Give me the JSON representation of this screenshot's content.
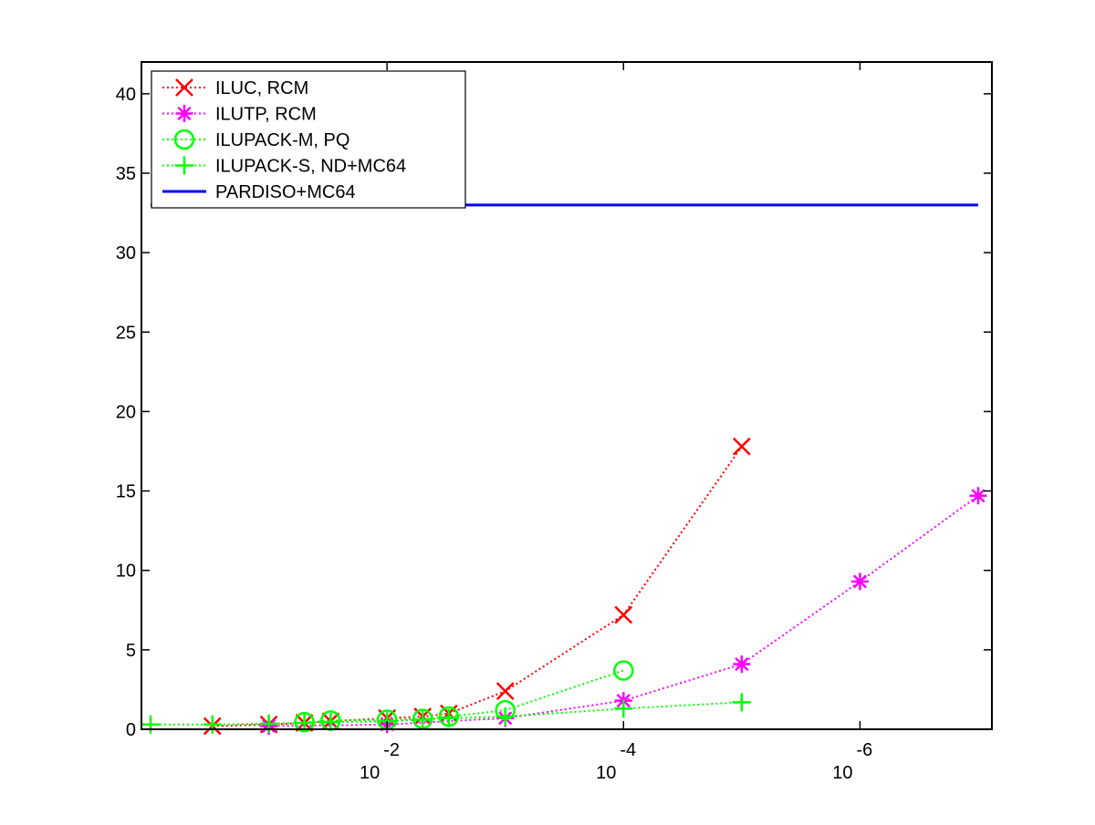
{
  "chart_data": {
    "type": "line",
    "title": "",
    "xlabel": "",
    "ylabel": "",
    "x_scale": "log",
    "x_reversed": true,
    "xlim": [
      1,
      1e-07
    ],
    "ylim": [
      0,
      42
    ],
    "y_ticks": [
      0,
      5,
      10,
      15,
      20,
      25,
      30,
      35,
      40
    ],
    "x_ticks": [
      {
        "value": 0.01,
        "base": "10",
        "exp": "-2"
      },
      {
        "value": 0.0001,
        "base": "10",
        "exp": "-4"
      },
      {
        "value": 1e-06,
        "base": "10",
        "exp": "-6"
      }
    ],
    "grid": false,
    "legend_position": "top-left",
    "series": [
      {
        "name": "ILUC, RCM",
        "color": "#ff0000",
        "line_style": "dotted",
        "marker": "x",
        "x": [
          0.3,
          0.1,
          0.05,
          0.03,
          0.01,
          0.005,
          0.003,
          0.001,
          0.0001,
          1e-05
        ],
        "y": [
          0.2,
          0.3,
          0.4,
          0.5,
          0.7,
          0.8,
          1.0,
          2.4,
          7.2,
          17.8
        ]
      },
      {
        "name": "ILUTP, RCM",
        "color": "#ff00ff",
        "line_style": "dotted",
        "marker": "asterisk",
        "x": [
          0.1,
          0.01,
          0.001,
          0.0001,
          1e-05,
          1e-06,
          1e-07
        ],
        "y": [
          0.2,
          0.3,
          0.7,
          1.8,
          4.1,
          9.3,
          14.7
        ]
      },
      {
        "name": "ILUPACK-M, PQ",
        "color": "#00ff00",
        "line_style": "dotted",
        "marker": "circle",
        "x": [
          0.05,
          0.03,
          0.01,
          0.005,
          0.003,
          0.001,
          0.0001
        ],
        "y": [
          0.45,
          0.55,
          0.6,
          0.65,
          0.8,
          1.2,
          3.7
        ]
      },
      {
        "name": "ILUPACK-S, ND+MC64",
        "color": "#00ff00",
        "line_style": "dotted",
        "marker": "plus",
        "x": [
          1,
          0.3,
          0.1,
          0.05,
          0.03,
          0.01,
          0.005,
          0.003,
          0.001,
          0.0001,
          1e-05
        ],
        "y": [
          0.3,
          0.3,
          0.35,
          0.4,
          0.45,
          0.5,
          0.6,
          0.7,
          0.8,
          1.3,
          1.7
        ]
      },
      {
        "name": "PARDISO+MC64",
        "color": "#0000ff",
        "line_style": "solid",
        "marker": "none",
        "x": [
          1,
          1e-07
        ],
        "y": [
          33,
          33
        ]
      }
    ]
  }
}
